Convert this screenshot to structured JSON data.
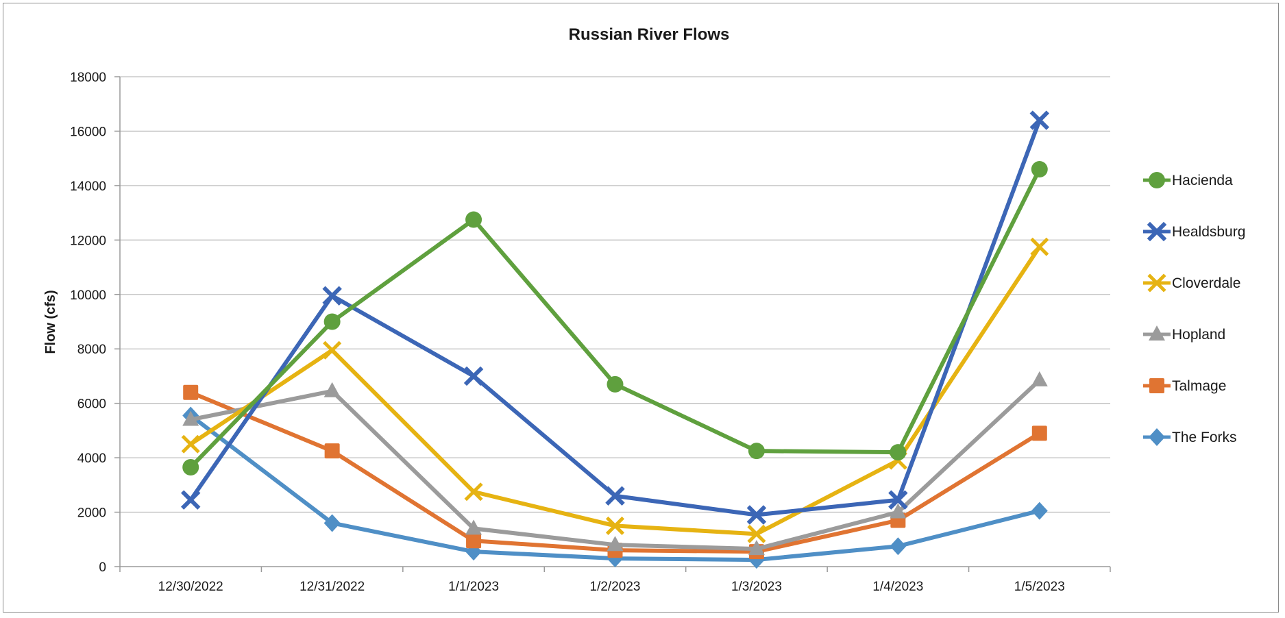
{
  "chart_data": {
    "type": "line",
    "title": "Russian River Flows",
    "xlabel": "",
    "ylabel": "Flow (cfs)",
    "ylim": [
      0,
      18000
    ],
    "yticks": [
      0,
      2000,
      4000,
      6000,
      8000,
      10000,
      12000,
      14000,
      16000,
      18000
    ],
    "grid": true,
    "legend_position": "right",
    "categories": [
      "12/30/2022",
      "12/31/2022",
      "1/1/2023",
      "1/2/2023",
      "1/3/2023",
      "1/4/2023",
      "1/5/2023"
    ],
    "series": [
      {
        "name": "The Forks",
        "color": "#4f8fc6",
        "marker": "diamond",
        "values": [
          5550,
          1600,
          550,
          300,
          250,
          750,
          2050
        ]
      },
      {
        "name": "Talmage",
        "color": "#e07432",
        "marker": "square",
        "values": [
          6400,
          4250,
          950,
          600,
          550,
          1700,
          4900
        ]
      },
      {
        "name": "Hopland",
        "color": "#9b9b9b",
        "marker": "triangle",
        "values": [
          5400,
          6450,
          1400,
          800,
          650,
          2000,
          6850
        ]
      },
      {
        "name": "Cloverdale",
        "color": "#e6b312",
        "marker": "x",
        "values": [
          4500,
          7950,
          2750,
          1500,
          1200,
          3900,
          11750
        ]
      },
      {
        "name": "Healdsburg",
        "color": "#3c66b6",
        "marker": "x-bold",
        "values": [
          2450,
          9950,
          7000,
          2600,
          1900,
          2450,
          16400
        ]
      },
      {
        "name": "Hacienda",
        "color": "#5fa03e",
        "marker": "circle",
        "values": [
          3650,
          9000,
          12750,
          6700,
          4250,
          4200,
          14600
        ]
      }
    ],
    "legend_order": [
      "Hacienda",
      "Healdsburg",
      "Cloverdale",
      "Hopland",
      "Talmage",
      "The Forks"
    ]
  }
}
